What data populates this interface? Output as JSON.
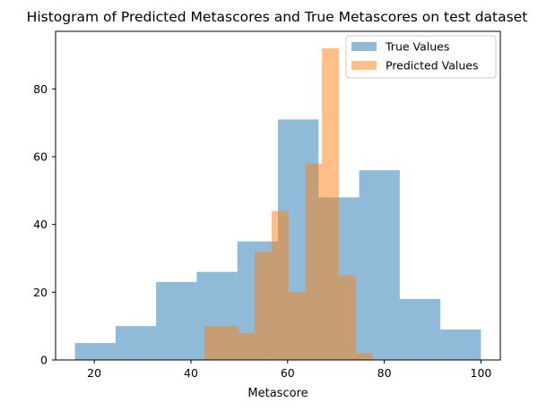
{
  "chart_data": {
    "type": "histogram",
    "title": "Histogram of Predicted Metascores and True Metascores on test dataset",
    "xlabel": "Metascore",
    "ylabel": "",
    "xlim": [
      12,
      104
    ],
    "ylim": [
      0,
      97
    ],
    "x_ticks": [
      20,
      40,
      60,
      80,
      100
    ],
    "y_ticks": [
      0,
      20,
      40,
      60,
      80
    ],
    "grid": false,
    "legend_position": "top-right",
    "series": [
      {
        "name": "True Values",
        "color": "#1f77b4",
        "opacity": 0.5,
        "bins": [
          {
            "x0": 16,
            "x1": 24.4,
            "count": 5
          },
          {
            "x0": 24.4,
            "x1": 32.8,
            "count": 10
          },
          {
            "x0": 32.8,
            "x1": 41.2,
            "count": 23
          },
          {
            "x0": 41.2,
            "x1": 49.6,
            "count": 26
          },
          {
            "x0": 49.6,
            "x1": 58.0,
            "count": 35
          },
          {
            "x0": 58.0,
            "x1": 66.4,
            "count": 71
          },
          {
            "x0": 66.4,
            "x1": 74.8,
            "count": 48
          },
          {
            "x0": 74.8,
            "x1": 83.2,
            "count": 56
          },
          {
            "x0": 83.2,
            "x1": 91.6,
            "count": 18
          },
          {
            "x0": 91.6,
            "x1": 100.0,
            "count": 9
          }
        ]
      },
      {
        "name": "Predicted Values",
        "color": "#ff7f0e",
        "opacity": 0.5,
        "bins": [
          {
            "x0": 42.8,
            "x1": 46.3,
            "count": 10
          },
          {
            "x0": 46.3,
            "x1": 49.8,
            "count": 10
          },
          {
            "x0": 49.8,
            "x1": 53.2,
            "count": 8
          },
          {
            "x0": 53.2,
            "x1": 56.7,
            "count": 32
          },
          {
            "x0": 56.7,
            "x1": 60.2,
            "count": 44
          },
          {
            "x0": 60.2,
            "x1": 63.7,
            "count": 20
          },
          {
            "x0": 63.7,
            "x1": 67.1,
            "count": 58
          },
          {
            "x0": 67.1,
            "x1": 70.6,
            "count": 92
          },
          {
            "x0": 70.6,
            "x1": 74.1,
            "count": 25
          },
          {
            "x0": 74.1,
            "x1": 77.6,
            "count": 2
          }
        ]
      }
    ]
  }
}
